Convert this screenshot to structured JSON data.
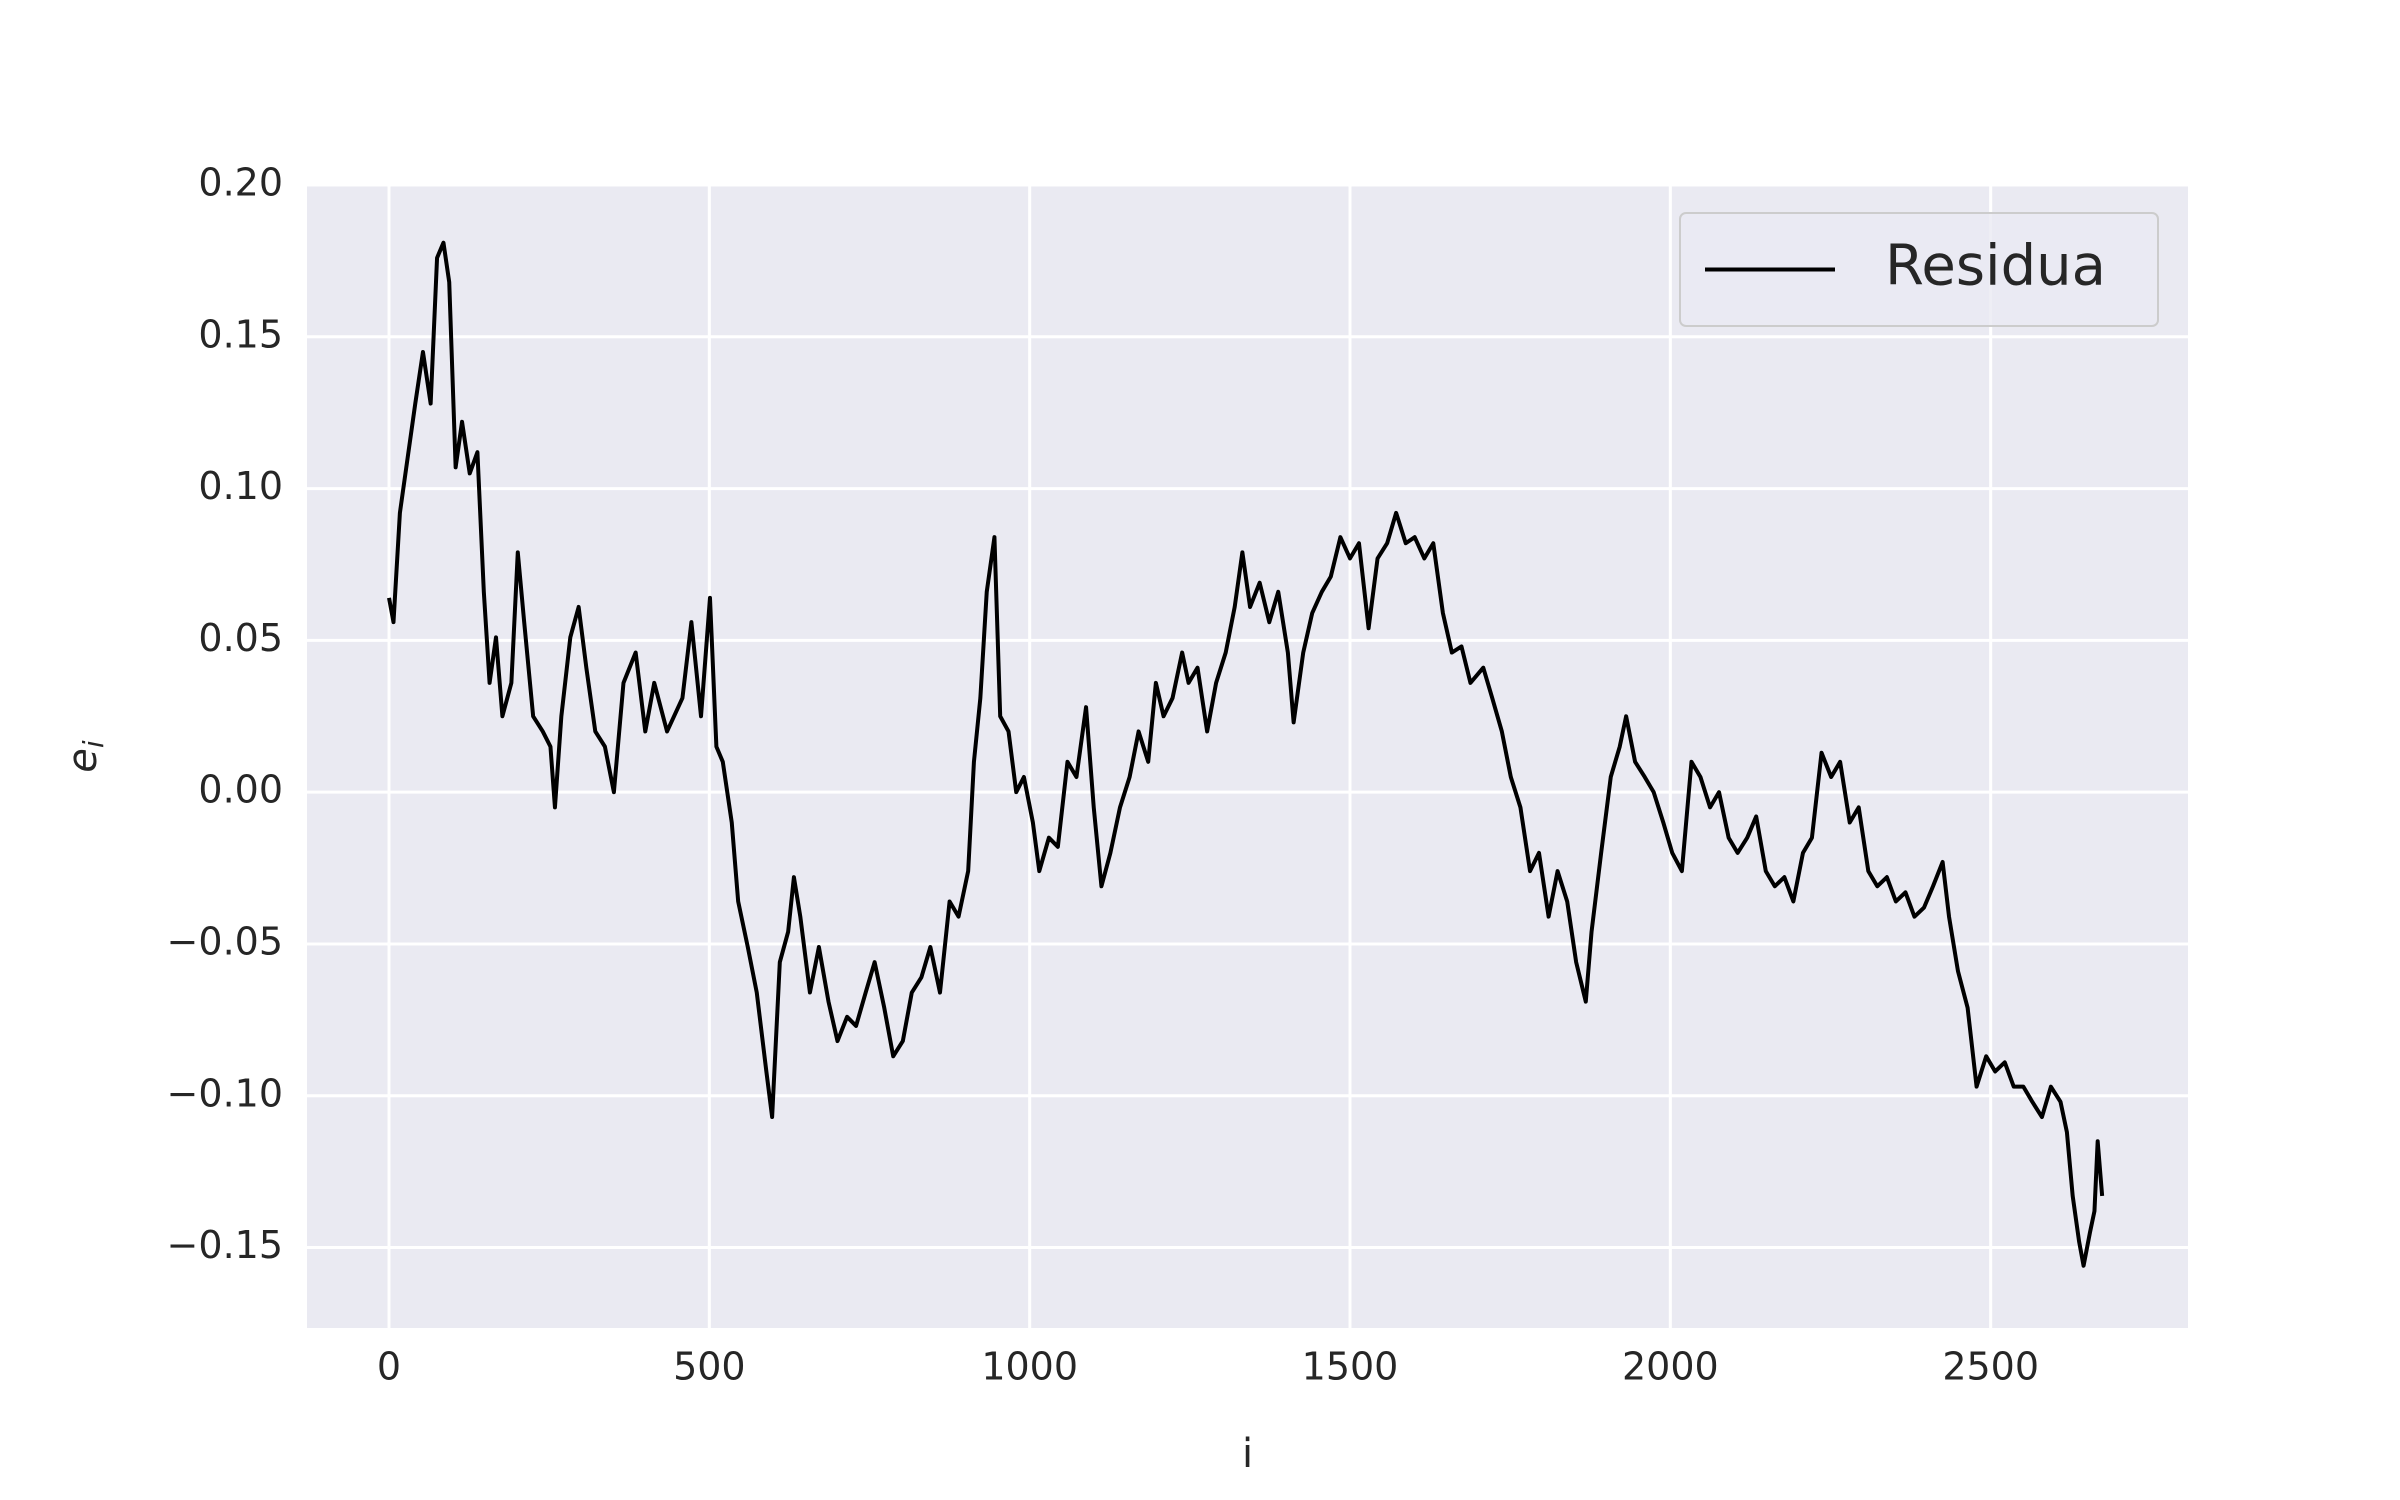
{
  "chart_data": {
    "type": "line",
    "xlabel": "i",
    "ylabel": "e",
    "ylabel_subscript": "i",
    "x": [
      0,
      7,
      17,
      29,
      41,
      53,
      65,
      75,
      85,
      94,
      104,
      114,
      126,
      138,
      148,
      157,
      167,
      177,
      191,
      201,
      211,
      225,
      240,
      252,
      259,
      269,
      283,
      296,
      308,
      322,
      337,
      351,
      366,
      385,
      400,
      414,
      434,
      458,
      472,
      487,
      501,
      511,
      521,
      535,
      545,
      560,
      574,
      589,
      598,
      610,
      623,
      632,
      642,
      657,
      671,
      686,
      700,
      715,
      729,
      744,
      758,
      773,
      787,
      802,
      816,
      831,
      845,
      860,
      875,
      889,
      904,
      913,
      923,
      933,
      945,
      954,
      967,
      979,
      991,
      1005,
      1015,
      1030,
      1044,
      1059,
      1073,
      1088,
      1100,
      1112,
      1126,
      1141,
      1156,
      1170,
      1185,
      1197,
      1209,
      1223,
      1238,
      1248,
      1262,
      1277,
      1291,
      1306,
      1320,
      1332,
      1344,
      1359,
      1374,
      1388,
      1403,
      1412,
      1427,
      1441,
      1456,
      1470,
      1485,
      1500,
      1514,
      1529,
      1543,
      1558,
      1572,
      1587,
      1601,
      1616,
      1630,
      1645,
      1659,
      1674,
      1688,
      1708,
      1722,
      1737,
      1751,
      1766,
      1781,
      1795,
      1810,
      1824,
      1839,
      1853,
      1868,
      1877,
      1892,
      1907,
      1921,
      1931,
      1945,
      1960,
      1974,
      1989,
      2003,
      2018,
      2033,
      2047,
      2062,
      2076,
      2091,
      2105,
      2120,
      2134,
      2149,
      2163,
      2178,
      2192,
      2207,
      2221,
      2236,
      2251,
      2265,
      2280,
      2294,
      2309,
      2323,
      2338,
      2352,
      2367,
      2381,
      2396,
      2410,
      2425,
      2435,
      2449,
      2464,
      2478,
      2493,
      2507,
      2522,
      2536,
      2551,
      2565,
      2580,
      2594,
      2609,
      2619,
      2628,
      2638,
      2645,
      2655,
      2662,
      2667,
      2674
    ],
    "series": [
      {
        "name": "Residua",
        "color": "#000000",
        "values": [
          0.064,
          0.056,
          0.092,
          0.11,
          0.128,
          0.145,
          0.128,
          0.176,
          0.181,
          0.168,
          0.107,
          0.122,
          0.105,
          0.112,
          0.066,
          0.036,
          0.051,
          0.025,
          0.036,
          0.079,
          0.056,
          0.025,
          0.02,
          0.015,
          -0.005,
          0.025,
          0.051,
          0.061,
          0.041,
          0.02,
          0.015,
          0,
          0.036,
          0.046,
          0.02,
          0.036,
          0.02,
          0.031,
          0.056,
          0.025,
          0.064,
          0.015,
          0.01,
          -0.01,
          -0.036,
          -0.051,
          -0.066,
          -0.092,
          -0.107,
          -0.056,
          -0.046,
          -0.028,
          -0.041,
          -0.066,
          -0.051,
          -0.069,
          -0.082,
          -0.074,
          -0.077,
          -0.066,
          -0.056,
          -0.071,
          -0.087,
          -0.082,
          -0.066,
          -0.061,
          -0.051,
          -0.066,
          -0.036,
          -0.041,
          -0.026,
          0.01,
          0.031,
          0.066,
          0.084,
          0.025,
          0.02,
          0,
          0.005,
          -0.01,
          -0.026,
          -0.015,
          -0.018,
          0.01,
          0.005,
          0.028,
          -0.005,
          -0.031,
          -0.02,
          -0.005,
          0.005,
          0.02,
          0.01,
          0.036,
          0.025,
          0.031,
          0.046,
          0.036,
          0.041,
          0.02,
          0.036,
          0.046,
          0.061,
          0.079,
          0.061,
          0.069,
          0.056,
          0.066,
          0.046,
          0.023,
          0.046,
          0.059,
          0.066,
          0.071,
          0.084,
          0.077,
          0.082,
          0.054,
          0.077,
          0.082,
          0.092,
          0.082,
          0.084,
          0.077,
          0.082,
          0.059,
          0.046,
          0.048,
          0.036,
          0.041,
          0.031,
          0.02,
          0.005,
          -0.005,
          -0.026,
          -0.02,
          -0.041,
          -0.026,
          -0.036,
          -0.056,
          -0.069,
          -0.046,
          -0.02,
          0.005,
          0.015,
          0.025,
          0.01,
          0.005,
          0,
          -0.01,
          -0.02,
          -0.026,
          0.01,
          0.005,
          -0.005,
          0,
          -0.015,
          -0.02,
          -0.015,
          -0.008,
          -0.026,
          -0.031,
          -0.028,
          -0.036,
          -0.02,
          -0.015,
          0.013,
          0.005,
          0.01,
          -0.01,
          -0.005,
          -0.026,
          -0.031,
          -0.028,
          -0.036,
          -0.033,
          -0.041,
          -0.038,
          -0.031,
          -0.023,
          -0.041,
          -0.059,
          -0.071,
          -0.097,
          -0.087,
          -0.092,
          -0.089,
          -0.097,
          -0.097,
          -0.102,
          -0.107,
          -0.097,
          -0.102,
          -0.112,
          -0.133,
          -0.148,
          -0.156,
          -0.145,
          -0.138,
          -0.115,
          -0.133
        ]
      }
    ],
    "xlim": [
      -128,
      2808
    ],
    "ylim": [
      -0.1765,
      0.2
    ],
    "xticks": [
      0,
      500,
      1000,
      1500,
      2000,
      2500
    ],
    "yticks": [
      {
        "value": -0.15,
        "label": "−0.15"
      },
      {
        "value": -0.1,
        "label": "−0.10"
      },
      {
        "value": -0.05,
        "label": "−0.05"
      },
      {
        "value": 0,
        "label": "0.00"
      },
      {
        "value": 0.05,
        "label": "0.05"
      },
      {
        "value": 0.1,
        "label": "0.10"
      },
      {
        "value": 0.15,
        "label": "0.15"
      },
      {
        "value": 0.2,
        "label": "0.20"
      }
    ],
    "grid": true,
    "legend": "upper right",
    "background": "#eaeaf2"
  }
}
